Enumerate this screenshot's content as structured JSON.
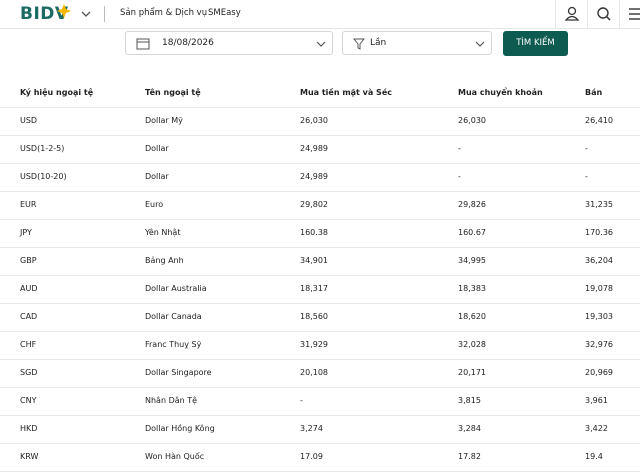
{
  "header": {
    "logo": "BIDV",
    "nav": [
      "Sản phẩm & Dịch vụ",
      "SMEasy"
    ]
  },
  "filters": {
    "date": "18/08/2026",
    "frequency": "Lần",
    "search_button": "TÌM KIẾM"
  },
  "table": {
    "columns": [
      "Ký hiệu ngoại tệ",
      "Tên ngoại tệ",
      "Mua tiền mặt và Séc",
      "Mua chuyển khoản",
      "Bán"
    ],
    "rows": [
      [
        "USD",
        "Dollar Mỹ",
        "26,030",
        "26,030",
        "26,410"
      ],
      [
        "USD(1-2-5)",
        "Dollar",
        "24,989",
        "-",
        "-"
      ],
      [
        "USD(10-20)",
        "Dollar",
        "24,989",
        "-",
        "-"
      ],
      [
        "EUR",
        "Euro",
        "29,802",
        "29,826",
        "31,235"
      ],
      [
        "JPY",
        "Yên Nhật",
        "160.38",
        "160.67",
        "170.36"
      ],
      [
        "GBP",
        "Bảng Anh",
        "34,901",
        "34,995",
        "36,204"
      ],
      [
        "AUD",
        "Dollar Australia",
        "18,317",
        "18,383",
        "19,078"
      ],
      [
        "CAD",
        "Dollar Canada",
        "18,560",
        "18,620",
        "19,303"
      ],
      [
        "CHF",
        "Franc Thuỵ Sỹ",
        "31,929",
        "32,028",
        "32,976"
      ],
      [
        "SGD",
        "Dollar Singapore",
        "20,108",
        "20,171",
        "20,969"
      ],
      [
        "CNY",
        "Nhân Dân Tệ",
        "-",
        "3,815",
        "3,961"
      ],
      [
        "HKD",
        "Dollar Hồng Kông",
        "3,274",
        "3,284",
        "3,422"
      ],
      [
        "KRW",
        "Won Hàn Quốc",
        "17.09",
        "17.82",
        "19.4"
      ]
    ]
  }
}
